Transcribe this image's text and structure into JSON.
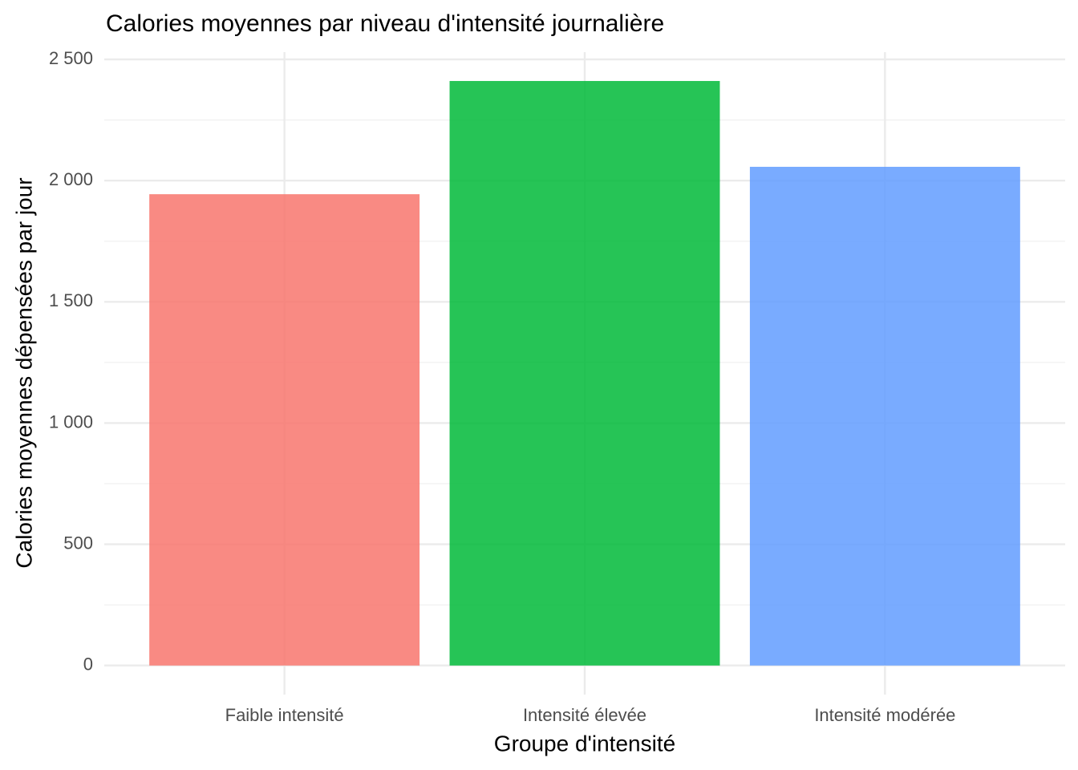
{
  "chart_data": {
    "type": "bar",
    "title": "Calories moyennes par niveau d'intensité journalière",
    "x_label": "Groupe d'intensité",
    "y_label": "Calories moyennes dépensées par jour",
    "categories": [
      "Faible intensité",
      "Intensité élevée",
      "Intensité modérée"
    ],
    "values": [
      1944,
      2411,
      2057
    ],
    "colors": [
      "#F8766D",
      "#00BA38",
      "#619CFF"
    ],
    "alpha": 0.85,
    "ylim": [
      -120,
      2530
    ],
    "yticks": [
      0,
      500,
      {
        "value": 1000,
        "label": "1 000"
      },
      {
        "value": 1500,
        "label": "1 500"
      },
      {
        "value": 2000,
        "label": "2 000"
      },
      {
        "value": 2500,
        "label": "2 500"
      }
    ],
    "minor_yticks": [
      250,
      750,
      1250,
      1750,
      2250
    ],
    "grid": true
  }
}
